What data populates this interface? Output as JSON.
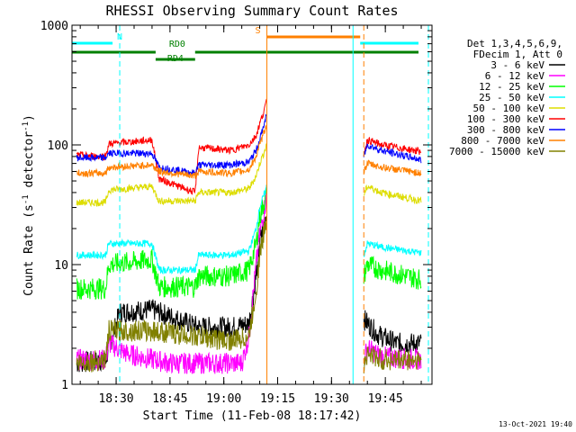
{
  "chart_data": {
    "type": "line",
    "title": "RHESSI Observing Summary Count Rates",
    "xlabel": "Start Time (11-Feb-08 18:17:42)",
    "ylabel": "Count Rate (s⁻¹ detector⁻¹)",
    "ylabel_text": "Count Rate (s",
    "ylabel_mid": " detector",
    "ylabel_end": ")",
    "ylabel_sup": "-1",
    "y_scale": "log",
    "ylim": [
      1,
      1000
    ],
    "xlim": [
      "18:17:42",
      "19:58:00"
    ],
    "x_ticks": [
      "18:30",
      "18:45",
      "19:00",
      "19:15",
      "19:30",
      "19:45"
    ],
    "y_ticks": [
      "1",
      "10",
      "100",
      "1000"
    ],
    "legend_header": [
      "Det 1,3,4,5,6,9,",
      "FDecim 1, Att 0"
    ],
    "legend_position": "right",
    "timestamp": "13-Oct-2021 19:40",
    "series": [
      {
        "name": "3 - 6 keV",
        "color": "#000000",
        "x": [
          "18:19",
          "18:27",
          "18:31",
          "18:40",
          "18:53",
          "19:02",
          "19:07",
          "19:09",
          "19:10",
          "19:12",
          "19:39",
          "19:43",
          "19:48",
          "19:55"
        ],
        "y": [
          1.5,
          1.6,
          4.0,
          4.2,
          3.0,
          3.0,
          3.2,
          8,
          15,
          28,
          3.5,
          2.6,
          2.2,
          2.2
        ]
      },
      {
        "name": "6 - 12 keV",
        "color": "#ff00ff",
        "x": [
          "18:19",
          "18:27",
          "18:28",
          "18:33",
          "18:45",
          "19:05",
          "19:07",
          "19:09",
          "19:10",
          "19:12",
          "19:39",
          "19:40",
          "19:44",
          "19:55"
        ],
        "y": [
          1.6,
          1.6,
          2.2,
          1.8,
          1.5,
          1.5,
          2.5,
          10,
          18,
          38,
          1.6,
          2.0,
          1.7,
          1.6
        ]
      },
      {
        "name": "12 - 25 keV",
        "color": "#00ff00",
        "x": [
          "18:19",
          "18:27",
          "18:28",
          "18:40",
          "18:42",
          "18:52",
          "18:53",
          "19:02",
          "19:07",
          "19:09",
          "19:10",
          "19:12",
          "19:39",
          "19:40",
          "19:44",
          "19:55"
        ],
        "y": [
          6.3,
          6.3,
          10,
          11,
          6.5,
          6.5,
          8,
          8,
          9,
          15,
          25,
          40,
          8.0,
          10,
          9,
          7.5
        ]
      },
      {
        "name": "25 - 50 keV",
        "color": "#00ffff",
        "x": [
          "18:19",
          "18:27",
          "18:28",
          "18:40",
          "18:42",
          "18:52",
          "18:53",
          "19:02",
          "19:07",
          "19:09",
          "19:10",
          "19:12",
          "19:39",
          "19:40",
          "19:44",
          "19:55"
        ],
        "y": [
          12,
          12,
          15,
          15,
          9,
          9,
          12,
          12,
          13,
          20,
          30,
          45,
          12,
          15,
          14,
          12.5
        ]
      },
      {
        "name": "50 - 100 keV",
        "color": "#dddd00",
        "x": [
          "18:19",
          "18:27",
          "18:28",
          "18:40",
          "18:42",
          "18:52",
          "18:53",
          "19:02",
          "19:07",
          "19:09",
          "19:10",
          "19:12",
          "19:39",
          "19:40",
          "19:44",
          "19:55"
        ],
        "y": [
          33,
          33,
          42,
          45,
          34,
          34,
          40,
          40,
          43,
          55,
          70,
          100,
          38,
          45,
          40,
          34
        ]
      },
      {
        "name": "100 - 300 keV",
        "color": "#ff0000",
        "x": [
          "18:19",
          "18:27",
          "18:28",
          "18:40",
          "18:42",
          "18:52",
          "18:53",
          "19:02",
          "19:07",
          "19:09",
          "19:10",
          "19:12",
          "19:39",
          "19:40",
          "19:44",
          "19:55"
        ],
        "y": [
          82,
          80,
          102,
          110,
          52,
          40,
          95,
          90,
          100,
          120,
          150,
          230,
          85,
          110,
          100,
          88
        ]
      },
      {
        "name": "300 - 800 keV",
        "color": "#0000ff",
        "x": [
          "18:19",
          "18:27",
          "18:28",
          "18:40",
          "18:42",
          "18:52",
          "18:53",
          "19:02",
          "19:07",
          "19:09",
          "19:10",
          "19:12",
          "19:39",
          "19:40",
          "19:44",
          "19:55"
        ],
        "y": [
          78,
          78,
          85,
          85,
          65,
          58,
          68,
          68,
          72,
          90,
          110,
          180,
          80,
          100,
          90,
          75
        ]
      },
      {
        "name": "800 - 7000 keV",
        "color": "#ff8000",
        "x": [
          "18:19",
          "18:27",
          "18:28",
          "18:40",
          "18:42",
          "18:52",
          "18:53",
          "19:02",
          "19:07",
          "19:09",
          "19:10",
          "19:12",
          "19:39",
          "19:40",
          "19:44",
          "19:55"
        ],
        "y": [
          58,
          58,
          65,
          68,
          60,
          55,
          60,
          58,
          62,
          80,
          100,
          150,
          60,
          70,
          65,
          58
        ]
      },
      {
        "name": "7000 - 15000 keV",
        "color": "#808000",
        "x": [
          "18:19",
          "18:27",
          "18:28",
          "18:40",
          "18:53",
          "19:02",
          "19:07",
          "19:09",
          "19:10",
          "19:12",
          "19:39",
          "19:40",
          "19:44",
          "19:55"
        ],
        "y": [
          1.5,
          1.6,
          2.8,
          2.8,
          2.5,
          2.3,
          2.5,
          6,
          12,
          25,
          1.5,
          1.8,
          1.6,
          1.6
        ]
      }
    ],
    "flag_bars": [
      {
        "label": "N",
        "color": "#00ffff",
        "segments": [
          [
            "18:17:42",
            "18:29"
          ],
          [
            "19:38",
            "19:58"
          ]
        ]
      },
      {
        "label": "S",
        "color": "#ff8000",
        "segments": [
          [
            "19:12",
            "19:38"
          ]
        ]
      },
      {
        "label": "RD0",
        "color": "#008000",
        "segments": [
          [
            "18:17:42",
            "18:41"
          ],
          [
            "18:52",
            "19:58"
          ]
        ]
      },
      {
        "label": "RD4",
        "color": "#008000",
        "segments": [
          [
            "18:41",
            "18:52"
          ]
        ]
      }
    ],
    "vertical_markers": [
      {
        "color": "#00ffff",
        "style": "solid",
        "x": "18:17:42"
      },
      {
        "color": "#00ffff",
        "style": "dashed",
        "x": "18:31"
      },
      {
        "color": "#ff8000",
        "style": "solid",
        "x": "19:12"
      },
      {
        "color": "#00ffff",
        "style": "solid",
        "x": "19:36"
      },
      {
        "color": "#ff8000",
        "style": "dashed",
        "x": "19:39"
      },
      {
        "color": "#00ffff",
        "style": "dashed",
        "x": "19:57"
      }
    ]
  }
}
